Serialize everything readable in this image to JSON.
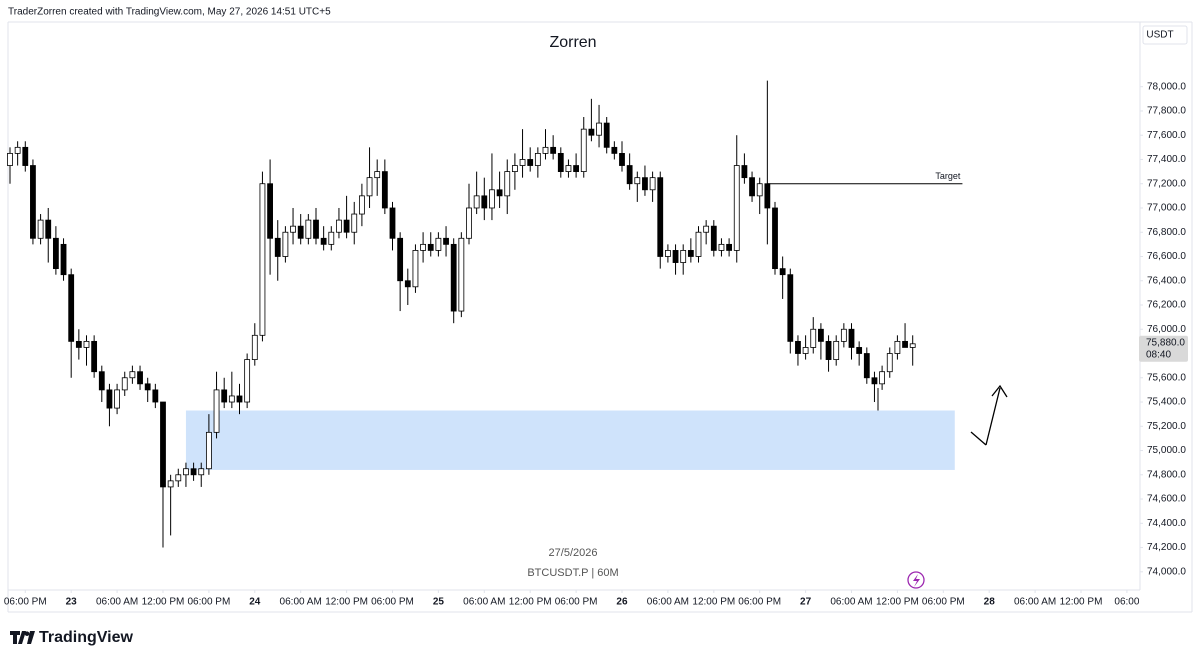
{
  "header": "TraderZorren created with TradingView.com, May 27, 2026 14:51 UTC+5",
  "footer_logo": "TradingView",
  "chart_data": {
    "type": "candlestick",
    "title": "Zorren",
    "currency": "USDT",
    "date_label": "27/5/2026",
    "symbol_label": "BTCUSDT.P | 60M",
    "up_color": "#ffffff",
    "down_color": "#000000",
    "grid": false,
    "ylim": [
      73850,
      78550
    ],
    "xlim": [
      -0.26,
      147.45
    ],
    "yticks": [
      {
        "value": 74000,
        "label": "74,000.0"
      },
      {
        "value": 74200,
        "label": "74,200.0"
      },
      {
        "value": 74400,
        "label": "74,400.0"
      },
      {
        "value": 74600,
        "label": "74,600.0"
      },
      {
        "value": 74800,
        "label": "74,800.0"
      },
      {
        "value": 75000,
        "label": "75,000.0"
      },
      {
        "value": 75200,
        "label": "75,200.0"
      },
      {
        "value": 75400,
        "label": "75,400.0"
      },
      {
        "value": 75600,
        "label": "75,600.0"
      },
      {
        "value": 76000,
        "label": "76,000.0"
      },
      {
        "value": 76200,
        "label": "76,200.0"
      },
      {
        "value": 76400,
        "label": "76,400.0"
      },
      {
        "value": 76600,
        "label": "76,600.0"
      },
      {
        "value": 76800,
        "label": "76,800.0"
      },
      {
        "value": 77000,
        "label": "77,000.0"
      },
      {
        "value": 77200,
        "label": "77,200.0"
      },
      {
        "value": 77400,
        "label": "77,400.0"
      },
      {
        "value": 77600,
        "label": "77,600.0"
      },
      {
        "value": 77800,
        "label": "77,800.0"
      },
      {
        "value": 78000,
        "label": "78,000.0"
      }
    ],
    "xticks": [
      {
        "value": 2,
        "label": "06:00 PM"
      },
      {
        "value": 8,
        "label": "23"
      },
      {
        "value": 14,
        "label": "06:00 AM"
      },
      {
        "value": 20,
        "label": "12:00 PM"
      },
      {
        "value": 26,
        "label": "06:00 PM"
      },
      {
        "value": 32,
        "label": "24"
      },
      {
        "value": 38,
        "label": "06:00 AM"
      },
      {
        "value": 44,
        "label": "12:00 PM"
      },
      {
        "value": 50,
        "label": "06:00 PM"
      },
      {
        "value": 56,
        "label": "25"
      },
      {
        "value": 62,
        "label": "06:00 AM"
      },
      {
        "value": 68,
        "label": "12:00 PM"
      },
      {
        "value": 74,
        "label": "06:00 PM"
      },
      {
        "value": 80,
        "label": "26"
      },
      {
        "value": 86,
        "label": "06:00 AM"
      },
      {
        "value": 92,
        "label": "12:00 PM"
      },
      {
        "value": 98,
        "label": "06:00 PM"
      },
      {
        "value": 104,
        "label": "27"
      },
      {
        "value": 110,
        "label": "06:00 AM"
      },
      {
        "value": 116,
        "label": "12:00 PM"
      },
      {
        "value": 122,
        "label": "06:00 PM"
      },
      {
        "value": 128,
        "label": "28"
      },
      {
        "value": 134,
        "label": "06:00 AM"
      },
      {
        "value": 140,
        "label": "12:00 PM"
      },
      {
        "value": 146,
        "label": "06:00"
      }
    ],
    "last_price": {
      "value": 75880,
      "label": "75,880.0"
    },
    "countdown": "08:40",
    "target": {
      "label": "Target",
      "value": 77200,
      "xlim": [
        99,
        124.5
      ]
    },
    "zone": {
      "ylim": [
        74840,
        75330
      ],
      "xlim": [
        23,
        123.5
      ],
      "color": "#cfe3fb"
    },
    "open": [
      77350,
      77450,
      77500,
      77350,
      76750,
      76900,
      76750,
      76700,
      76450,
      75900,
      75850,
      75900,
      75650,
      75500,
      75350,
      75500,
      75600,
      75650,
      75550,
      75500,
      75400,
      74700,
      74750,
      74800,
      74850,
      74800,
      74850,
      75150,
      75500,
      75400,
      75450,
      75400,
      75750,
      75950,
      77200,
      76750,
      76600,
      76800,
      76850,
      76750,
      76900,
      76750,
      76700,
      76800,
      76900,
      76800,
      76950,
      77100,
      77250,
      77300,
      77000,
      76750,
      76400,
      76350,
      76650,
      76700,
      76650,
      76750,
      76700,
      76150,
      76750,
      77000,
      77100,
      77000,
      77150,
      77100,
      77300,
      77350,
      77400,
      77350,
      77450,
      77500,
      77450,
      77300,
      77350,
      77300,
      77650,
      77600,
      77700,
      77500,
      77450,
      77350,
      77200,
      77250,
      77150,
      77250,
      76600,
      76650,
      76550,
      76650,
      76600,
      76800,
      76850,
      76650,
      76700,
      76650,
      77350,
      77250,
      77100,
      77200,
      77000,
      76500,
      76450,
      75900,
      75800,
      75850,
      76000,
      75900,
      75750,
      75900,
      76000,
      75850,
      75800,
      75600,
      75550,
      75650,
      75800,
      75900,
      75850
    ],
    "high": [
      77500,
      77550,
      77550,
      77400,
      76950,
      77000,
      76850,
      76750,
      76500,
      76000,
      75950,
      75950,
      75700,
      75550,
      75550,
      75650,
      75700,
      75700,
      75600,
      75550,
      75400,
      74800,
      74850,
      74900,
      74900,
      74900,
      75300,
      75650,
      75600,
      75650,
      75550,
      75800,
      76050,
      77300,
      77400,
      76900,
      76850,
      77000,
      76950,
      76950,
      77000,
      76850,
      76850,
      77000,
      77100,
      77050,
      77200,
      77500,
      77400,
      77400,
      77050,
      76800,
      76500,
      76700,
      76800,
      76800,
      76800,
      76850,
      76750,
      76800,
      77200,
      77300,
      77250,
      77450,
      77300,
      77400,
      77450,
      77650,
      77500,
      77500,
      77650,
      77600,
      77500,
      77400,
      77450,
      77750,
      77900,
      77850,
      77750,
      77550,
      77550,
      77450,
      77300,
      77350,
      77300,
      77300,
      76700,
      76700,
      76700,
      76750,
      76850,
      76900,
      76900,
      76750,
      76750,
      77600,
      77450,
      77300,
      77250,
      78050,
      77050,
      76600,
      76500,
      75950,
      75950,
      76100,
      76050,
      75950,
      75950,
      76050,
      76050,
      75900,
      75850,
      75650,
      75700,
      75850,
      75950,
      76050,
      75950
    ],
    "low": [
      77200,
      77350,
      77300,
      76700,
      76700,
      76550,
      76450,
      76400,
      75600,
      75750,
      75700,
      75600,
      75400,
      75200,
      75300,
      75450,
      75550,
      75500,
      75400,
      75350,
      74200,
      74300,
      74700,
      74700,
      74750,
      74700,
      74800,
      75100,
      75350,
      75350,
      75300,
      75350,
      75700,
      75900,
      76450,
      76400,
      76550,
      76700,
      76700,
      76700,
      76700,
      76650,
      76650,
      76750,
      76750,
      76700,
      76850,
      77000,
      77100,
      76950,
      76650,
      76150,
      76200,
      76300,
      76550,
      76600,
      76600,
      76600,
      76050,
      76100,
      76700,
      76950,
      76900,
      76900,
      77000,
      76950,
      77150,
      77250,
      77300,
      77250,
      77400,
      77400,
      77250,
      77250,
      77250,
      77250,
      77550,
      77500,
      77450,
      77400,
      77300,
      77150,
      77050,
      77100,
      77050,
      76500,
      76550,
      76450,
      76450,
      76550,
      76550,
      76700,
      76600,
      76600,
      76600,
      76550,
      77200,
      77050,
      76950,
      76700,
      76450,
      76250,
      75800,
      75700,
      75750,
      75800,
      75750,
      75650,
      75700,
      75850,
      75750,
      75700,
      75550,
      75400,
      75500,
      75600,
      75750,
      75850,
      75700
    ],
    "close": [
      77450,
      77500,
      77350,
      76750,
      76900,
      76750,
      76500,
      76450,
      75900,
      75850,
      75900,
      75650,
      75500,
      75350,
      75500,
      75600,
      75650,
      75550,
      75500,
      75400,
      74700,
      74750,
      74800,
      74850,
      74800,
      74850,
      75150,
      75500,
      75400,
      75450,
      75400,
      75750,
      75950,
      77200,
      76750,
      76600,
      76800,
      76850,
      76750,
      76900,
      76750,
      76700,
      76800,
      76900,
      76800,
      76950,
      77100,
      77250,
      77300,
      77000,
      76750,
      76400,
      76350,
      76650,
      76700,
      76650,
      76750,
      76700,
      76150,
      76750,
      77000,
      77100,
      77000,
      77150,
      77100,
      77300,
      77350,
      77400,
      77350,
      77450,
      77500,
      77450,
      77300,
      77350,
      77300,
      77650,
      77600,
      77700,
      77500,
      77450,
      77350,
      77200,
      77250,
      77150,
      77250,
      76600,
      76650,
      76550,
      76650,
      76600,
      76800,
      76850,
      76650,
      76700,
      76650,
      77350,
      77250,
      77100,
      77200,
      77000,
      76500,
      76450,
      75900,
      75800,
      75850,
      76000,
      75900,
      75750,
      75900,
      76000,
      75850,
      75800,
      75600,
      75550,
      75650,
      75800,
      75900,
      75850,
      75880
    ]
  }
}
